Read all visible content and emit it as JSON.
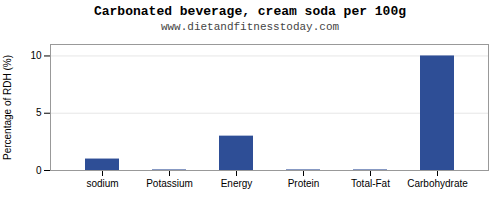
{
  "chart_data": {
    "type": "bar",
    "title": "Carbonated beverage, cream soda per 100g",
    "subtitle": "www.dietandfitnesstoday.com",
    "categories": [
      "sodium",
      "Potassium",
      "Energy",
      "Protein",
      "Total-Fat",
      "Carbohydrate"
    ],
    "values": [
      1.0,
      0.05,
      3.0,
      0.05,
      0.05,
      10.0
    ],
    "color": "#2e4e96",
    "ylabel": "Percentage of RDH (%)",
    "ylim": [
      0,
      11
    ],
    "yticks": [
      0,
      5,
      10
    ],
    "grid": true
  }
}
